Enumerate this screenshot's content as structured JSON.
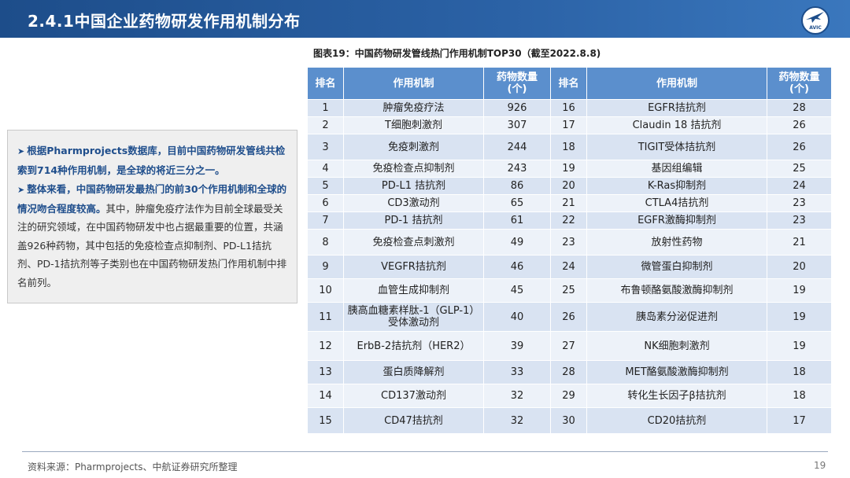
{
  "header": {
    "title": "2.4.1中国企业药物研发作用机制分布",
    "logo_text": "AVIC"
  },
  "summary": {
    "bullets": [
      {
        "highlight": "根据Pharmprojects数据库，目前中国药物研发管线共检索到714种作用机制，是全球的将近三分之一。",
        "text": ""
      },
      {
        "highlight": "整体来看，中国药物研发最热门的前30个作用机制和全球的情况吻合程度较高。",
        "text": "其中，肿瘤免疫疗法作为目前全球最受关注的研究领域，在中国药物研发中也占据最重要的位置，共涵盖926种药物，其中包括的免疫检查点抑制剂、PD-L1拮抗剂、PD-1拮抗剂等子类别也在中国药物研发热门作用机制中排名前列。"
      }
    ]
  },
  "table": {
    "caption": "图表19：中国药物研发管线热门作用机制TOP30（截至2022.8.8)",
    "headers": {
      "rank": "排名",
      "mechanism": "作用机制",
      "count_line1": "药物数量",
      "count_line2": "(个)"
    },
    "rows": [
      {
        "l_rank": "1",
        "l_mech": "肿瘤免疫疗法",
        "l_count": "926",
        "r_rank": "16",
        "r_mech": "EGFR拮抗剂",
        "r_count": "28"
      },
      {
        "l_rank": "2",
        "l_mech": "T细胞刺激剂",
        "l_count": "307",
        "r_rank": "17",
        "r_mech": "Claudin 18 拮抗剂",
        "r_count": "26"
      },
      {
        "l_rank": "3",
        "l_mech": "免疫刺激剂",
        "l_count": "244",
        "r_rank": "18",
        "r_mech": "TIGIT受体拮抗剂",
        "r_count": "26"
      },
      {
        "l_rank": "4",
        "l_mech": "免疫检查点抑制剂",
        "l_count": "243",
        "r_rank": "19",
        "r_mech": "基因组编辑",
        "r_count": "25"
      },
      {
        "l_rank": "5",
        "l_mech": "PD-L1 拮抗剂",
        "l_count": "86",
        "r_rank": "20",
        "r_mech": "K-Ras抑制剂",
        "r_count": "24"
      },
      {
        "l_rank": "6",
        "l_mech": "CD3激动剂",
        "l_count": "65",
        "r_rank": "21",
        "r_mech": "CTLA4拮抗剂",
        "r_count": "23"
      },
      {
        "l_rank": "7",
        "l_mech": "PD-1 拮抗剂",
        "l_count": "61",
        "r_rank": "22",
        "r_mech": "EGFR激酶抑制剂",
        "r_count": "23"
      },
      {
        "l_rank": "8",
        "l_mech": "免疫检查点刺激剂",
        "l_count": "49",
        "r_rank": "23",
        "r_mech": "放射性药物",
        "r_count": "21"
      },
      {
        "l_rank": "9",
        "l_mech": "VEGFR拮抗剂",
        "l_count": "46",
        "r_rank": "24",
        "r_mech": "微管蛋白抑制剂",
        "r_count": "20"
      },
      {
        "l_rank": "10",
        "l_mech": "血管生成抑制剂",
        "l_count": "45",
        "r_rank": "25",
        "r_mech": "布鲁顿酪氨酸激酶抑制剂",
        "r_count": "19"
      },
      {
        "l_rank": "11",
        "l_mech": "胰高血糖素样肽-1（GLP-1）受体激动剂",
        "l_count": "40",
        "r_rank": "26",
        "r_mech": "胰岛素分泌促进剂",
        "r_count": "19"
      },
      {
        "l_rank": "12",
        "l_mech": "ErbB-2拮抗剂（HER2）",
        "l_count": "39",
        "r_rank": "27",
        "r_mech": "NK细胞刺激剂",
        "r_count": "19"
      },
      {
        "l_rank": "13",
        "l_mech": "蛋白质降解剂",
        "l_count": "33",
        "r_rank": "28",
        "r_mech": "MET酪氨酸激酶抑制剂",
        "r_count": "18"
      },
      {
        "l_rank": "14",
        "l_mech": "CD137激动剂",
        "l_count": "32",
        "r_rank": "29",
        "r_mech": "转化生长因子β拮抗剂",
        "r_count": "18"
      },
      {
        "l_rank": "15",
        "l_mech": "CD47拮抗剂",
        "l_count": "32",
        "r_rank": "30",
        "r_mech": "CD20拮抗剂",
        "r_count": "17"
      }
    ]
  },
  "footer": {
    "source": "资料来源：Pharmprojects、中航证券研究所整理",
    "page_number": "19"
  },
  "colors": {
    "header_bg": "#1d4d8a",
    "table_header_bg": "#5b8fcd",
    "row_odd": "#d9e3f2",
    "row_even": "#edf2f9",
    "highlight_text": "#1f4e8c"
  }
}
